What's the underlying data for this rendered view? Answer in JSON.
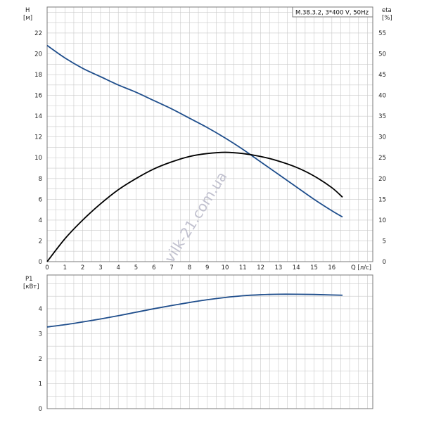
{
  "chart_data": [
    {
      "type": "line",
      "legend": "M.38.3.2, 3*400 V, 50Hz",
      "xlabel_top": "Q [л/с]",
      "ylabel_left": [
        "H",
        "[м]"
      ],
      "ylabel_right": [
        "eta",
        "[%]"
      ],
      "xlim": [
        0,
        18.3
      ],
      "ylim": [
        0,
        24.5
      ],
      "y2lim": [
        0,
        61.25
      ],
      "xticks": [
        0,
        1,
        2,
        3,
        4,
        5,
        6,
        7,
        8,
        9,
        10,
        11,
        12,
        13,
        14,
        15,
        16
      ],
      "yticks": [
        0,
        2,
        4,
        6,
        8,
        10,
        12,
        14,
        16,
        18,
        20,
        22
      ],
      "y2ticks": [
        0,
        5,
        10,
        15,
        20,
        25,
        30,
        35,
        40,
        45,
        50,
        55
      ],
      "grid": true,
      "series": [
        {
          "name": "H",
          "axis": "left",
          "color": "#1f4e8c",
          "x": [
            0,
            1,
            2,
            3,
            4,
            5,
            6,
            7,
            8,
            9,
            10,
            11,
            12,
            13,
            14,
            15,
            16,
            16.6
          ],
          "y": [
            20.8,
            19.6,
            18.6,
            17.8,
            17.0,
            16.3,
            15.5,
            14.7,
            13.8,
            12.9,
            11.9,
            10.8,
            9.6,
            8.4,
            7.2,
            6.0,
            4.9,
            4.3
          ]
        },
        {
          "name": "eta",
          "axis": "right",
          "color": "#000000",
          "x": [
            0,
            1,
            2,
            3,
            4,
            5,
            6,
            7,
            8,
            9,
            10,
            11,
            12,
            13,
            14,
            15,
            16,
            16.6
          ],
          "y": [
            0,
            5.5,
            10.0,
            13.9,
            17.3,
            20.0,
            22.3,
            24.0,
            25.3,
            26.0,
            26.3,
            26.0,
            25.3,
            24.2,
            22.7,
            20.6,
            17.8,
            15.5
          ]
        }
      ]
    },
    {
      "type": "line",
      "ylabel_left": [
        "P1",
        "[кВт]"
      ],
      "xlim": [
        0,
        18.3
      ],
      "ylim": [
        0,
        5.35
      ],
      "yticks": [
        0,
        1,
        2,
        3,
        4
      ],
      "grid": true,
      "series": [
        {
          "name": "P1",
          "axis": "left",
          "color": "#1f4e8c",
          "x": [
            0,
            1,
            2,
            3,
            4,
            5,
            6,
            7,
            8,
            9,
            10,
            11,
            12,
            13,
            14,
            15,
            16,
            16.6
          ],
          "y": [
            3.27,
            3.36,
            3.47,
            3.59,
            3.72,
            3.86,
            4.0,
            4.13,
            4.25,
            4.36,
            4.45,
            4.52,
            4.56,
            4.58,
            4.58,
            4.57,
            4.55,
            4.54
          ]
        }
      ]
    }
  ],
  "watermark": "vilk-21.com.ua"
}
